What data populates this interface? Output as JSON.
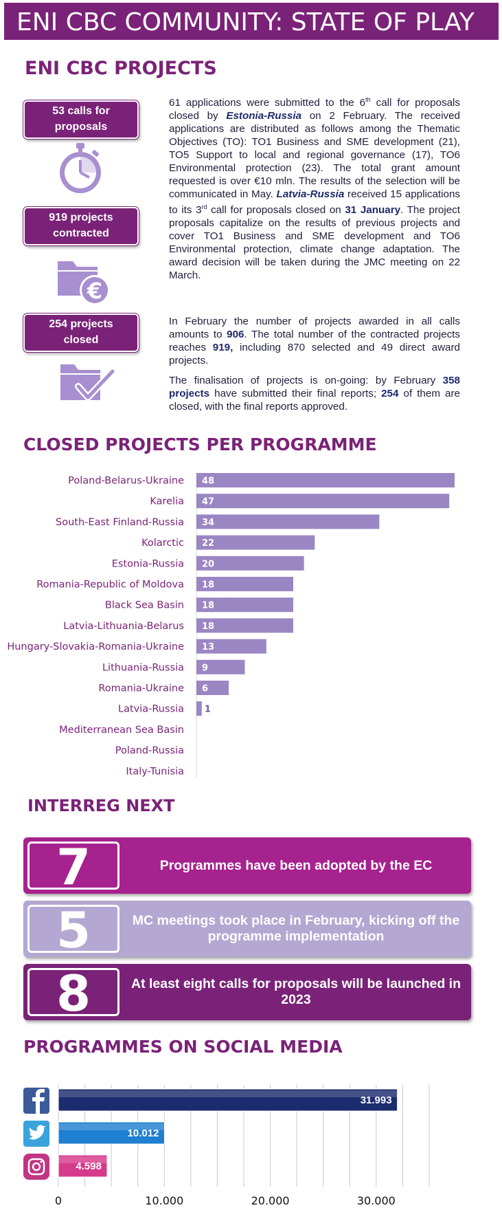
{
  "header": {
    "title": "ENI CBC COMMUNITY: STATE OF PLAY"
  },
  "projects_section": {
    "heading": "ENI CBC PROJECTS",
    "stats": [
      {
        "line1": "53 calls for",
        "line2": "proposals",
        "icon": "stopwatch-icon"
      },
      {
        "line1": "919 projects",
        "line2": "contracted",
        "icon": "euro-folder-icon"
      },
      {
        "line1": "254 projects",
        "line2": "closed",
        "icon": "checkmark-folder-icon"
      }
    ],
    "p1": {
      "a": "61 applications were submitted to the 6",
      "sup": "th",
      "b": " call for proposals closed by ",
      "em1": "Estonia-Russia",
      "c": " on 2 February. The received applications are distributed as follows among the Thematic Objectives (TO): TO1 Business and SME development (21), TO5 Support to local and regional governance (17), TO6 Environmental protection (23). The total grant amount requested is over €10 mln. The results of the selection will be communicated in May. ",
      "em2": "Latvia-Russia",
      "d": " received 15 applications to its 3",
      "sup2": "rd",
      "e": " call for proposals closed on ",
      "bold1": "31 January",
      "f": ". The project proposals capitalize on the results of previous projects and cover TO1 Business and SME development and TO6 Environmental protection, climate change adaptation. The award decision will be taken during the JMC meeting on 22 March."
    },
    "p2": {
      "a": "In February the number of projects awarded in all calls amounts to ",
      "bold1": "906",
      "b": ". The total number of the contracted projects reaches ",
      "bold2": "919,",
      "c": " including 870 selected and 49 direct award projects."
    },
    "p3": {
      "a": "The finalisation of projects is on-going: by February ",
      "bold1": "358 projects",
      "b": " have submitted their final reports; ",
      "bold2": "254",
      "c": " of them are closed, with the final reports approved."
    }
  },
  "closed_section": {
    "heading": "CLOSED PROJECTS PER PROGRAMME"
  },
  "chart_data": [
    {
      "type": "bar",
      "orientation": "horizontal",
      "title": "CLOSED PROJECTS PER PROGRAMME",
      "categories": [
        "Poland-Belarus-Ukraine",
        "Karelia",
        "South-East Finland-Russia",
        "Kolarctic",
        "Estonia-Russia",
        "Romania-Republic of Moldova",
        "Black Sea Basin",
        "Latvia-Lithuania-Belarus",
        "Hungary-Slovakia-Romania-Ukraine",
        "Lithuania-Russia",
        "Romania-Ukraine",
        "Latvia-Russia",
        "Mediterranean Sea Basin",
        "Poland-Russia",
        "Italy-Tunisia"
      ],
      "values": [
        48,
        47,
        34,
        22,
        20,
        18,
        18,
        18,
        13,
        9,
        6,
        1,
        0,
        0,
        0
      ],
      "value_labels": [
        "48",
        "47",
        "34",
        "22",
        "20",
        "18",
        "18",
        "18",
        "13",
        "9",
        "6",
        "1",
        "",
        "",
        ""
      ],
      "xlim": [
        0,
        48
      ],
      "bar_color": "#9b86c4",
      "label_color": "#7a2278"
    },
    {
      "type": "bar",
      "orientation": "horizontal",
      "title": "PROGRAMMES ON SOCIAL MEDIA",
      "categories": [
        "Facebook",
        "Twitter",
        "Instagram"
      ],
      "category_icons": [
        "facebook-icon",
        "twitter-icon",
        "instagram-icon"
      ],
      "values": [
        31993,
        10012,
        4598
      ],
      "value_labels": [
        "31.993",
        "10.012",
        "4.598"
      ],
      "xticks": [
        "0",
        "10.000",
        "20.000",
        "30.000"
      ],
      "xlim": [
        0,
        35000
      ],
      "bar_colors": [
        "#1b2d6e",
        "#1f7fd1",
        "#d63a8a"
      ]
    }
  ],
  "interreg_section": {
    "heading": "INTERREG NEXT",
    "cards": [
      {
        "number": "7",
        "text": "Programmes have been adopted by the EC",
        "color": "#a6228e"
      },
      {
        "number": "5",
        "text": "MC meetings took place in February, kicking off the programme implementation",
        "color": "#b4a7d2"
      },
      {
        "number": "8",
        "text": "At least eight calls for proposals will be launched in 2023",
        "color": "#7a2278"
      }
    ]
  },
  "social_section": {
    "heading": "PROGRAMMES ON SOCIAL MEDIA"
  }
}
